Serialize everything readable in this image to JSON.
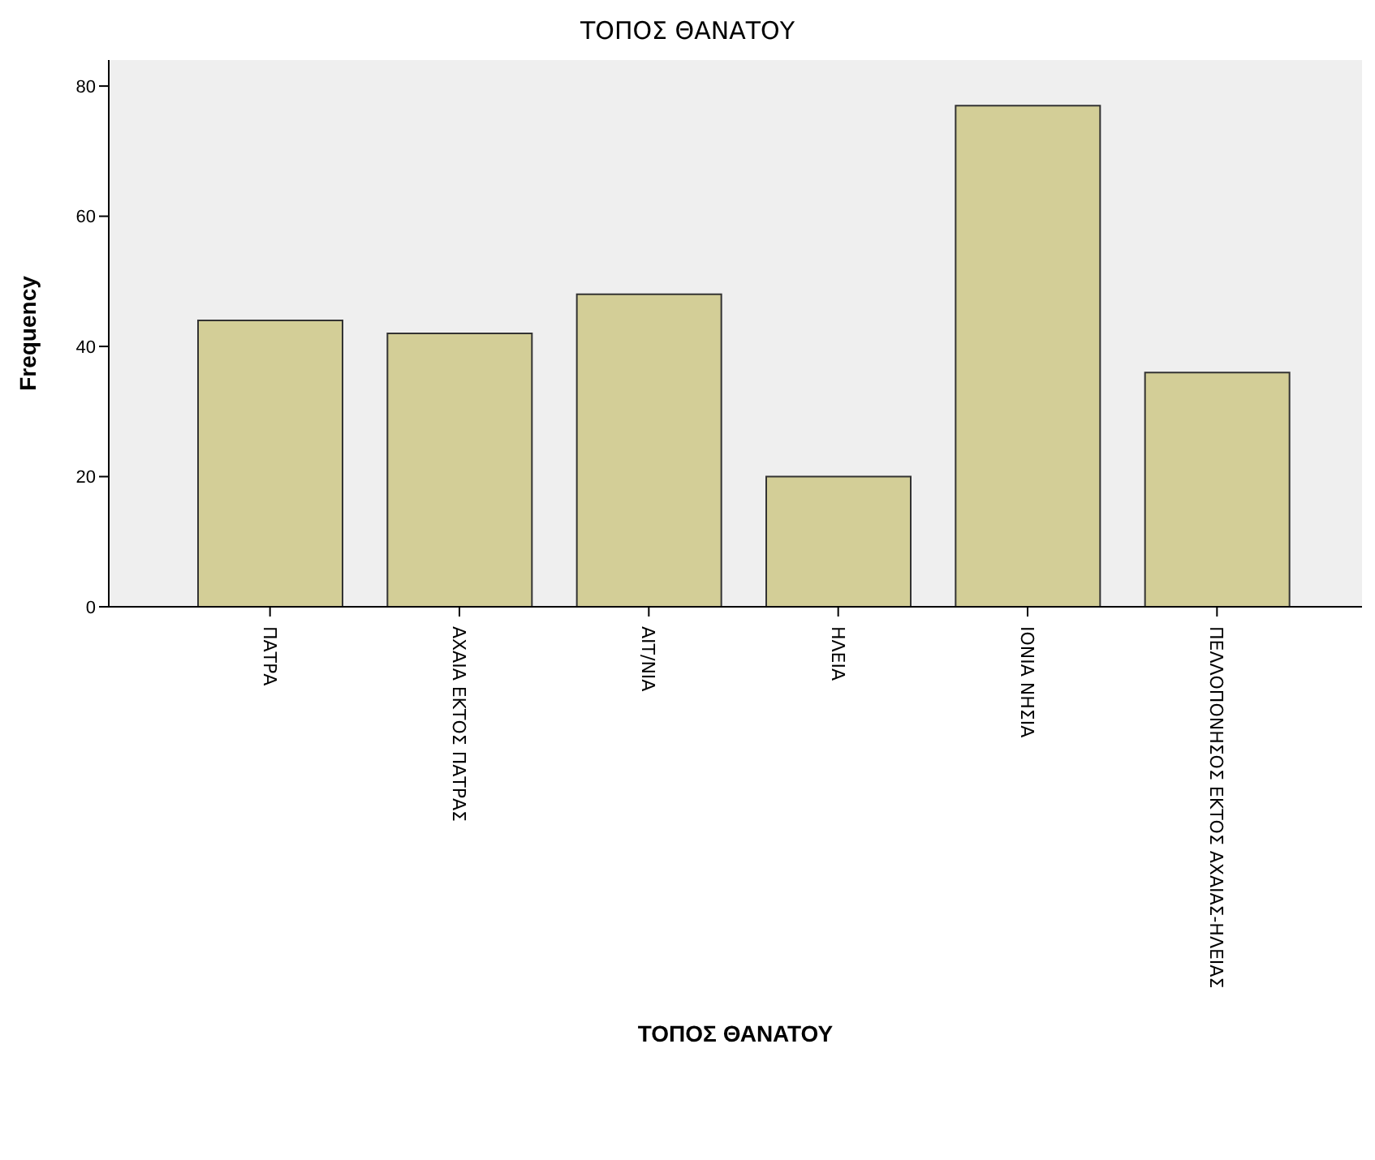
{
  "chart_data": {
    "type": "bar",
    "title": "ΤΟΠΟΣ ΘΑΝΑΤΟΥ",
    "xlabel": "ΤΟΠΟΣ ΘΑΝΑΤΟΥ",
    "ylabel": "Frequency",
    "categories": [
      "ΠΑΤΡΑ",
      "ΑΧΑΙΑ ΕΚΤΟΣ ΠΑΤΡΑΣ",
      "ΑΙΤ/ΝΙΑ",
      "ΗΛΕΙΑ",
      "ΙΟΝΙΑ ΝΗΣΙΑ",
      "ΠΕΛΛΟΠΟΝΗΣΟΣ ΕΚΤΟΣ ΑΧΑΙΑΣ-ΗΛΕΙΑΣ"
    ],
    "values": [
      44,
      42,
      48,
      20,
      77,
      36
    ],
    "color": "#d3ce97",
    "ylim": [
      0,
      84
    ],
    "yticks": [
      0,
      20,
      40,
      60,
      80
    ],
    "grid": false,
    "legend": false
  }
}
